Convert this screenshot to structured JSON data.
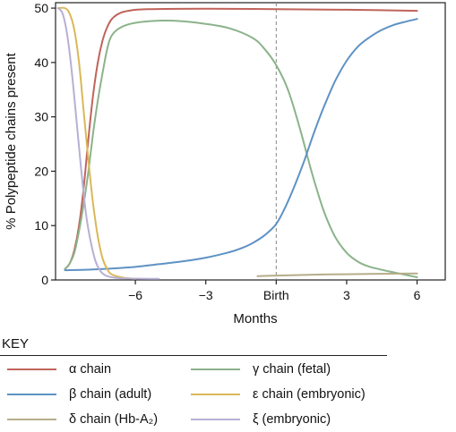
{
  "chart_data": {
    "type": "line",
    "title": "",
    "xlabel": "Months",
    "ylabel": "% Polypeptide chains present",
    "xlim": [
      -9.4,
      7.2
    ],
    "ylim": [
      0,
      51
    ],
    "x_ticks": [
      {
        "value": -6,
        "label": "−6"
      },
      {
        "value": -3,
        "label": "−3"
      },
      {
        "value": 0,
        "label": "Birth"
      },
      {
        "value": 3,
        "label": "3"
      },
      {
        "value": 6,
        "label": "6"
      }
    ],
    "y_ticks": [
      0,
      10,
      20,
      30,
      40,
      50
    ],
    "birth_marker": {
      "x": 0,
      "style": "dashed"
    },
    "series": [
      {
        "key": "alpha",
        "name": "α chain",
        "color": "#c0645a",
        "points": [
          [
            -9,
            2
          ],
          [
            -8.8,
            3
          ],
          [
            -8.6,
            5.5
          ],
          [
            -8.4,
            10
          ],
          [
            -8.2,
            17
          ],
          [
            -8,
            26
          ],
          [
            -7.8,
            34
          ],
          [
            -7.6,
            40
          ],
          [
            -7.4,
            44
          ],
          [
            -7.2,
            46.5
          ],
          [
            -7,
            48
          ],
          [
            -6.7,
            49
          ],
          [
            -6.3,
            49.5
          ],
          [
            -5.5,
            49.8
          ],
          [
            -3,
            49.9
          ],
          [
            0,
            49.8
          ],
          [
            3,
            49.7
          ],
          [
            6,
            49.5
          ]
        ]
      },
      {
        "key": "gamma",
        "name": "γ chain (fetal)",
        "color": "#8bb38a",
        "points": [
          [
            -9,
            2
          ],
          [
            -8.8,
            3
          ],
          [
            -8.6,
            5
          ],
          [
            -8.4,
            9
          ],
          [
            -8.2,
            14
          ],
          [
            -8,
            20
          ],
          [
            -7.8,
            27
          ],
          [
            -7.6,
            33
          ],
          [
            -7.4,
            38
          ],
          [
            -7.2,
            42.5
          ],
          [
            -7,
            45
          ],
          [
            -6.6,
            46.5
          ],
          [
            -6,
            47.3
          ],
          [
            -5,
            47.7
          ],
          [
            -4,
            47.6
          ],
          [
            -3,
            47.1
          ],
          [
            -2,
            46.3
          ],
          [
            -1,
            44.5
          ],
          [
            -0.5,
            42.5
          ],
          [
            0,
            39.5
          ],
          [
            0.5,
            35
          ],
          [
            1,
            28
          ],
          [
            1.5,
            20
          ],
          [
            2,
            13
          ],
          [
            2.5,
            8
          ],
          [
            3,
            5
          ],
          [
            3.5,
            3.3
          ],
          [
            4,
            2.4
          ],
          [
            5,
            1.4
          ],
          [
            6,
            0.5
          ]
        ]
      },
      {
        "key": "beta",
        "name": "β chain (adult)",
        "color": "#5e92c4",
        "points": [
          [
            -9,
            1.8
          ],
          [
            -8,
            1.9
          ],
          [
            -7,
            2.1
          ],
          [
            -6,
            2.4
          ],
          [
            -5,
            2.9
          ],
          [
            -4,
            3.4
          ],
          [
            -3,
            4.1
          ],
          [
            -2,
            5.1
          ],
          [
            -1.5,
            5.8
          ],
          [
            -1,
            6.8
          ],
          [
            -0.5,
            8.2
          ],
          [
            0,
            10.3
          ],
          [
            0.4,
            13.5
          ],
          [
            0.8,
            17.5
          ],
          [
            1.2,
            22
          ],
          [
            1.6,
            27
          ],
          [
            2,
            31.5
          ],
          [
            2.5,
            36.5
          ],
          [
            3,
            40.3
          ],
          [
            3.5,
            43
          ],
          [
            4,
            44.7
          ],
          [
            4.5,
            46
          ],
          [
            5,
            46.9
          ],
          [
            5.5,
            47.5
          ],
          [
            6,
            48
          ]
        ]
      },
      {
        "key": "epsilon",
        "name": "ε chain (embryonic)",
        "color": "#d9b85a",
        "points": [
          [
            -9.3,
            50
          ],
          [
            -9,
            50
          ],
          [
            -8.8,
            49
          ],
          [
            -8.6,
            46
          ],
          [
            -8.4,
            40
          ],
          [
            -8.2,
            31
          ],
          [
            -8,
            22
          ],
          [
            -7.8,
            14
          ],
          [
            -7.6,
            8
          ],
          [
            -7.4,
            4
          ],
          [
            -7.2,
            2
          ],
          [
            -7,
            1
          ],
          [
            -6.5,
            0.4
          ],
          [
            -6,
            0.2
          ]
        ]
      },
      {
        "key": "delta",
        "name": "δ chain (Hb-A₂)",
        "color": "#b6ad8a",
        "points": [
          [
            -0.8,
            0.7
          ],
          [
            0,
            0.8
          ],
          [
            1,
            0.9
          ],
          [
            2,
            1.0
          ],
          [
            3,
            1.05
          ],
          [
            4,
            1.1
          ],
          [
            5,
            1.15
          ],
          [
            6,
            1.2
          ]
        ]
      },
      {
        "key": "xi",
        "name": "ξ (embryonic)",
        "color": "#b7b0d4",
        "points": [
          [
            -9.3,
            50
          ],
          [
            -9.1,
            49
          ],
          [
            -8.9,
            45
          ],
          [
            -8.7,
            38
          ],
          [
            -8.5,
            29
          ],
          [
            -8.3,
            20
          ],
          [
            -8.1,
            12
          ],
          [
            -7.9,
            7
          ],
          [
            -7.7,
            3.5
          ],
          [
            -7.5,
            1.7
          ],
          [
            -7.3,
            0.9
          ],
          [
            -7,
            0.5
          ],
          [
            -6.5,
            0.3
          ],
          [
            -5,
            0.2
          ]
        ]
      }
    ]
  },
  "key": {
    "title": "KEY",
    "items": [
      {
        "label": "α chain",
        "color": "#c0645a"
      },
      {
        "label": "γ chain (fetal)",
        "color": "#8bb38a"
      },
      {
        "label": "β chain (adult)",
        "color": "#5e92c4"
      },
      {
        "label": "ε chain (embryonic)",
        "color": "#d9b85a"
      },
      {
        "label": "δ chain (Hb-A₂)",
        "color": "#b6ad8a"
      },
      {
        "label": "ξ (embryonic)",
        "color": "#b7b0d4"
      }
    ]
  }
}
